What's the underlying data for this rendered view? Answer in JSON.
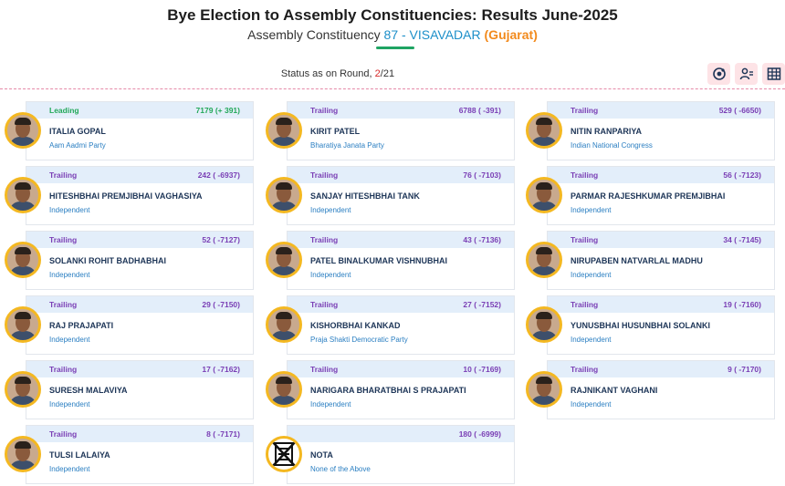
{
  "header": {
    "title": "Bye Election to Assembly Constituencies: Results June-2025",
    "subtitle_prefix": "Assembly Constituency",
    "constituency": "87 - VISAVADAR",
    "state": "(Gujarat)"
  },
  "status": {
    "prefix": "Status as on Round,",
    "current": "2",
    "total": "/21"
  },
  "toolbar": {
    "icons": [
      "chart-nodes-icon",
      "users-filter-icon",
      "table-grid-icon"
    ]
  },
  "colors": {
    "leading": "#23a85a",
    "trailing": "#7a3fb5",
    "accent": "#f4b821",
    "party": "#2b7fc2"
  },
  "candidates": [
    {
      "status": "Leading",
      "votes": "7179 (+ 391)",
      "name": "ITALIA GOPAL",
      "party": "Aam Aadmi Party"
    },
    {
      "status": "Trailing",
      "votes": "6788 ( -391)",
      "name": "KIRIT PATEL",
      "party": "Bharatiya Janata Party"
    },
    {
      "status": "Trailing",
      "votes": "529 ( -6650)",
      "name": "NITIN RANPARIYA",
      "party": "Indian National Congress"
    },
    {
      "status": "Trailing",
      "votes": "242 ( -6937)",
      "name": "HITESHBHAI PREMJIBHAI VAGHASIYA",
      "party": "Independent"
    },
    {
      "status": "Trailing",
      "votes": "76 ( -7103)",
      "name": "SANJAY HITESHBHAI TANK",
      "party": "Independent"
    },
    {
      "status": "Trailing",
      "votes": "56 ( -7123)",
      "name": "PARMAR RAJESHKUMAR PREMJIBHAI",
      "party": "Independent"
    },
    {
      "status": "Trailing",
      "votes": "52 ( -7127)",
      "name": "SOLANKI ROHIT BADHABHAI",
      "party": "Independent"
    },
    {
      "status": "Trailing",
      "votes": "43 ( -7136)",
      "name": "PATEL BINALKUMAR VISHNUBHAI",
      "party": "Independent"
    },
    {
      "status": "Trailing",
      "votes": "34 ( -7145)",
      "name": "NIRUPABEN NATVARLAL MADHU",
      "party": "Independent"
    },
    {
      "status": "Trailing",
      "votes": "29 ( -7150)",
      "name": "RAJ PRAJAPATI",
      "party": "Independent"
    },
    {
      "status": "Trailing",
      "votes": "27 ( -7152)",
      "name": "KISHORBHAI KANKAD",
      "party": "Praja Shakti Democratic Party"
    },
    {
      "status": "Trailing",
      "votes": "19 ( -7160)",
      "name": "YUNUSBHAI HUSUNBHAI SOLANKI",
      "party": "Independent"
    },
    {
      "status": "Trailing",
      "votes": "17 ( -7162)",
      "name": "SURESH MALAVIYA",
      "party": "Independent"
    },
    {
      "status": "Trailing",
      "votes": "10 ( -7169)",
      "name": "NARIGARA BHARATBHAI S PRAJAPATI",
      "party": "Independent"
    },
    {
      "status": "Trailing",
      "votes": "9 ( -7170)",
      "name": "RAJNIKANT VAGHANI",
      "party": "Independent"
    },
    {
      "status": "Trailing",
      "votes": "8 ( -7171)",
      "name": "TULSI LALAIYA",
      "party": "Independent"
    },
    {
      "status": "",
      "votes": "180 ( -6999)",
      "name": "NOTA",
      "party": "None of the Above"
    }
  ]
}
